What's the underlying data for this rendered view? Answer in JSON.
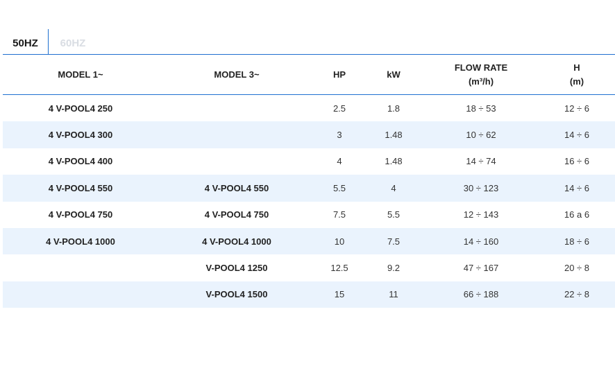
{
  "tabs": [
    {
      "label": "50HZ",
      "active": true
    },
    {
      "label": "60HZ",
      "active": false
    }
  ],
  "table": {
    "headers": {
      "model1": "MODEL 1~",
      "model3": "MODEL 3~",
      "hp": "HP",
      "kw": "kW",
      "flow_line1": "FLOW RATE",
      "flow_line2": "(m³/h)",
      "h_line1": "H",
      "h_line2": "(m)"
    },
    "rows": [
      {
        "model1": "4 V-POOL4 250",
        "model3": "",
        "hp": "2.5",
        "kw": "1.8",
        "flow": "18 ÷ 53",
        "h": "12 ÷ 6"
      },
      {
        "model1": "4 V-POOL4 300",
        "model3": "",
        "hp": "3",
        "kw": "1.48",
        "flow": "10 ÷ 62",
        "h": "14 ÷ 6"
      },
      {
        "model1": "4 V-POOL4 400",
        "model3": "",
        "hp": "4",
        "kw": "1.48",
        "flow": "14 ÷ 74",
        "h": "16 ÷ 6"
      },
      {
        "model1": "4 V-POOL4 550",
        "model3": "4 V-POOL4 550",
        "hp": "5.5",
        "kw": "4",
        "flow": "30 ÷ 123",
        "h": "14 ÷ 6"
      },
      {
        "model1": "4 V-POOL4 750",
        "model3": "4 V-POOL4 750",
        "hp": "7.5",
        "kw": "5.5",
        "flow": "12 ÷ 143",
        "h": "16 a 6"
      },
      {
        "model1": "4 V-POOL4 1000",
        "model3": "4 V-POOL4 1000",
        "hp": "10",
        "kw": "7.5",
        "flow": "14 ÷ 160",
        "h": "18 ÷ 6"
      },
      {
        "model1": "",
        "model3": "V-POOL4 1250",
        "hp": "12.5",
        "kw": "9.2",
        "flow": "47 ÷ 167",
        "h": "20 ÷ 8"
      },
      {
        "model1": "",
        "model3": "V-POOL4 1500",
        "hp": "15",
        "kw": "11",
        "flow": "66 ÷ 188",
        "h": "22 ÷ 8"
      }
    ]
  },
  "colors": {
    "accent": "#1e6fd0",
    "row_alt": "#eaf3fd",
    "tab_inactive": "#d9dde3"
  }
}
